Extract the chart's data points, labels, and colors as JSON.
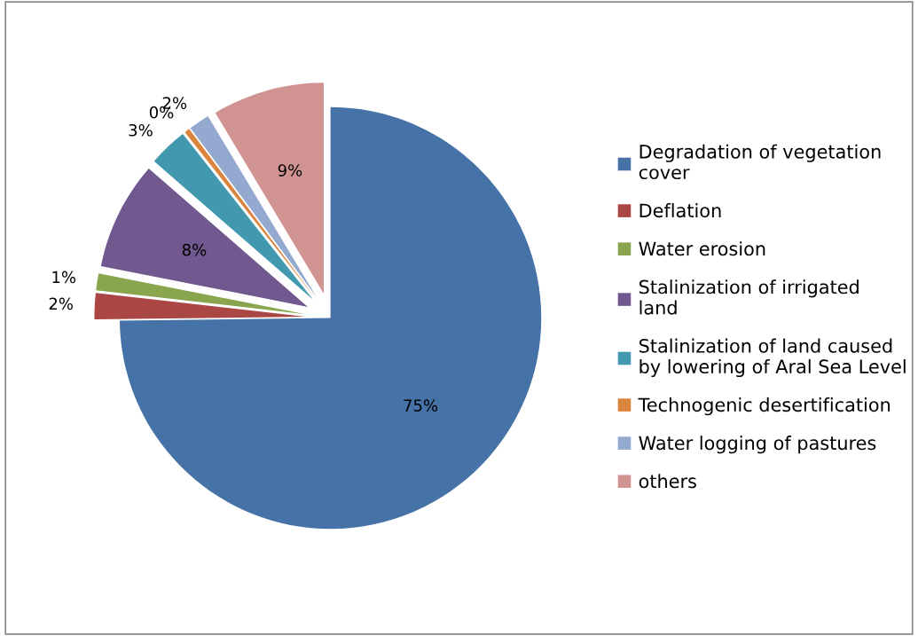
{
  "chart_data": {
    "type": "pie",
    "categories": [
      "Degradation of vegetation\ncover",
      "Deflation",
      "Water erosion",
      "Stalinization of irrigated\nland",
      "Stalinization of land caused\nby lowering of Aral Sea Level",
      "Technogenic desertification",
      "Water logging of pastures",
      "others"
    ],
    "values": [
      74.8,
      2,
      1.3,
      8.3,
      3,
      0.4,
      1.6,
      8.6
    ],
    "value_labels": [
      "75%",
      "2%",
      "1%",
      "8%",
      "3%",
      "0%",
      "2%",
      "9%"
    ],
    "colors": [
      "#4572a7",
      "#aa4643",
      "#89a54e",
      "#71588f",
      "#4198af",
      "#db843d",
      "#93a9cf",
      "#d19392"
    ],
    "legend": "right"
  }
}
